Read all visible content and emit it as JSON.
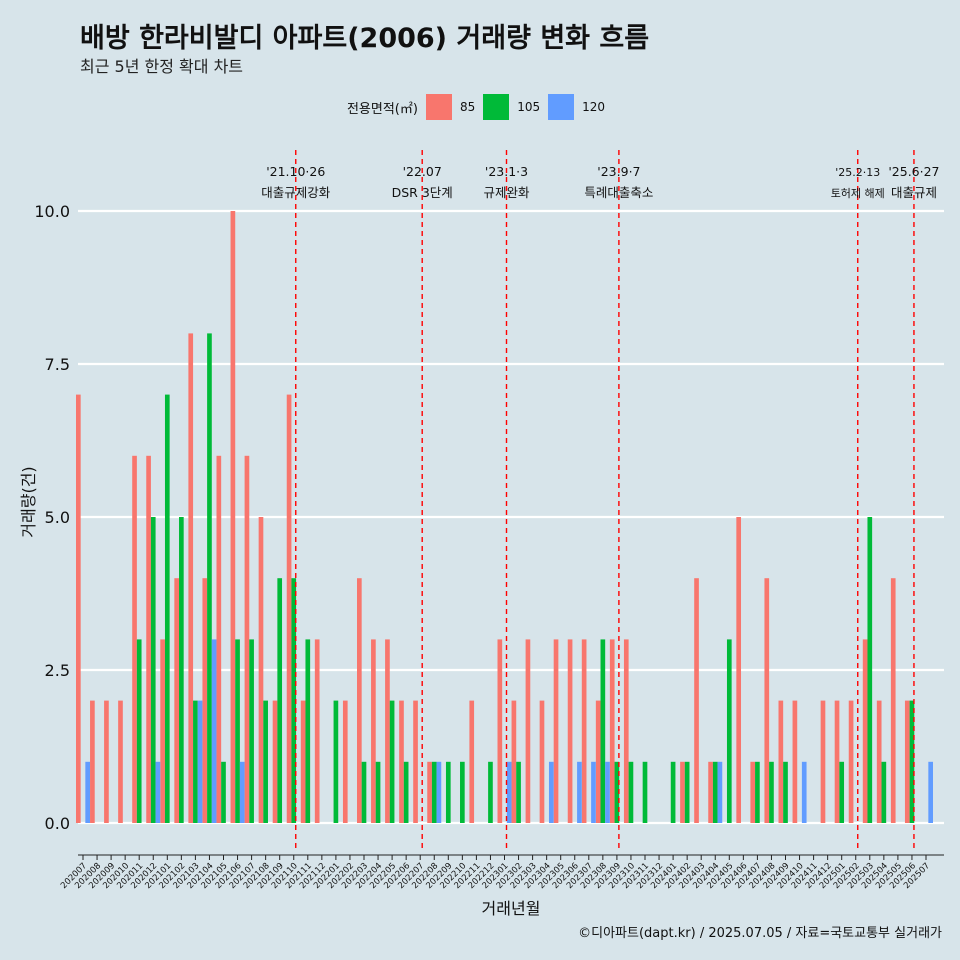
{
  "header": {
    "title": "배방 한라비발디 아파트(2006) 거래량 변화 흐름",
    "subtitle": "최근 5년 한정 확대 차트"
  },
  "legend": {
    "title": "전용면적(㎡)",
    "items": [
      {
        "label": "85",
        "color": "#f8766d"
      },
      {
        "label": "105",
        "color": "#00ba38"
      },
      {
        "label": "120",
        "color": "#619cff"
      }
    ]
  },
  "caption": "©디아파트(dapt.kr) / 2025.07.05 / 자료=국토교통부 실거래가",
  "chart_data": {
    "type": "bar",
    "xlabel": "거래년월",
    "ylabel": "거래량(건)",
    "ylim": [
      0,
      10
    ],
    "yticks": [
      "0.0",
      "2.5",
      "5.0",
      "7.5",
      "10.0"
    ],
    "categories": [
      "202007",
      "202008",
      "202009",
      "202010",
      "202011",
      "202012",
      "202101",
      "202102",
      "202103",
      "202104",
      "202105",
      "202106",
      "202107",
      "202108",
      "202109",
      "202110",
      "202111",
      "202112",
      "202201",
      "202202",
      "202203",
      "202204",
      "202205",
      "202206",
      "202207",
      "202208",
      "202209",
      "202210",
      "202211",
      "202212",
      "202301",
      "202302",
      "202303",
      "202304",
      "202305",
      "202306",
      "202307",
      "202308",
      "202309",
      "202310",
      "202311",
      "202312",
      "202401",
      "202402",
      "202403",
      "202404",
      "202405",
      "202406",
      "202407",
      "202408",
      "202409",
      "202410",
      "202411",
      "202412",
      "202501",
      "202502",
      "202503",
      "202504",
      "202505",
      "202506",
      "202507"
    ],
    "series": [
      {
        "name": "85",
        "color": "#f8766d",
        "values": [
          7,
          2,
          2,
          2,
          6,
          6,
          3,
          4,
          8,
          4,
          6,
          10,
          6,
          5,
          2,
          7,
          2,
          3,
          0,
          2,
          4,
          3,
          3,
          2,
          2,
          1,
          0,
          0,
          2,
          0,
          3,
          2,
          3,
          2,
          3,
          3,
          3,
          2,
          3,
          3,
          0,
          0,
          0,
          1,
          4,
          1,
          0,
          5,
          1,
          4,
          2,
          2,
          0,
          2,
          2,
          2,
          3,
          2,
          4,
          2,
          0
        ]
      },
      {
        "name": "105",
        "color": "#00ba38",
        "values": [
          0,
          0,
          0,
          0,
          3,
          5,
          7,
          5,
          2,
          8,
          1,
          3,
          3,
          2,
          4,
          4,
          3,
          0,
          2,
          0,
          1,
          1,
          2,
          1,
          0,
          1,
          1,
          1,
          0,
          1,
          0,
          1,
          0,
          0,
          0,
          0,
          0,
          3,
          1,
          1,
          1,
          0,
          1,
          1,
          0,
          1,
          3,
          0,
          1,
          1,
          1,
          0,
          0,
          0,
          1,
          0,
          5,
          1,
          0,
          2,
          0
        ]
      },
      {
        "name": "120",
        "color": "#619cff",
        "values": [
          1,
          0,
          0,
          0,
          0,
          1,
          0,
          0,
          2,
          3,
          0,
          1,
          0,
          0,
          0,
          0,
          0,
          0,
          0,
          0,
          0,
          0,
          0,
          0,
          0,
          1,
          0,
          0,
          0,
          0,
          1,
          0,
          0,
          1,
          0,
          1,
          1,
          1,
          0,
          0,
          0,
          0,
          0,
          0,
          0,
          1,
          0,
          0,
          0,
          0,
          0,
          1,
          0,
          0,
          0,
          0,
          0,
          0,
          0,
          0,
          1
        ]
      }
    ],
    "events": [
      {
        "date": "'21.10·26",
        "label": "대출규제강화",
        "x": "202110"
      },
      {
        "date": "'22.07",
        "label": "DSR 3단계",
        "x": "202207"
      },
      {
        "date": "'23.1·3",
        "label": "규제완화",
        "x": "202301"
      },
      {
        "date": "'23.9·7",
        "label": "특례대출축소",
        "x": "202309"
      },
      {
        "date": "'25.2·13",
        "label": "토허제 해제",
        "x": "202502"
      },
      {
        "date": "'25.6·27",
        "label": "대출규제",
        "x": "202506"
      }
    ]
  }
}
